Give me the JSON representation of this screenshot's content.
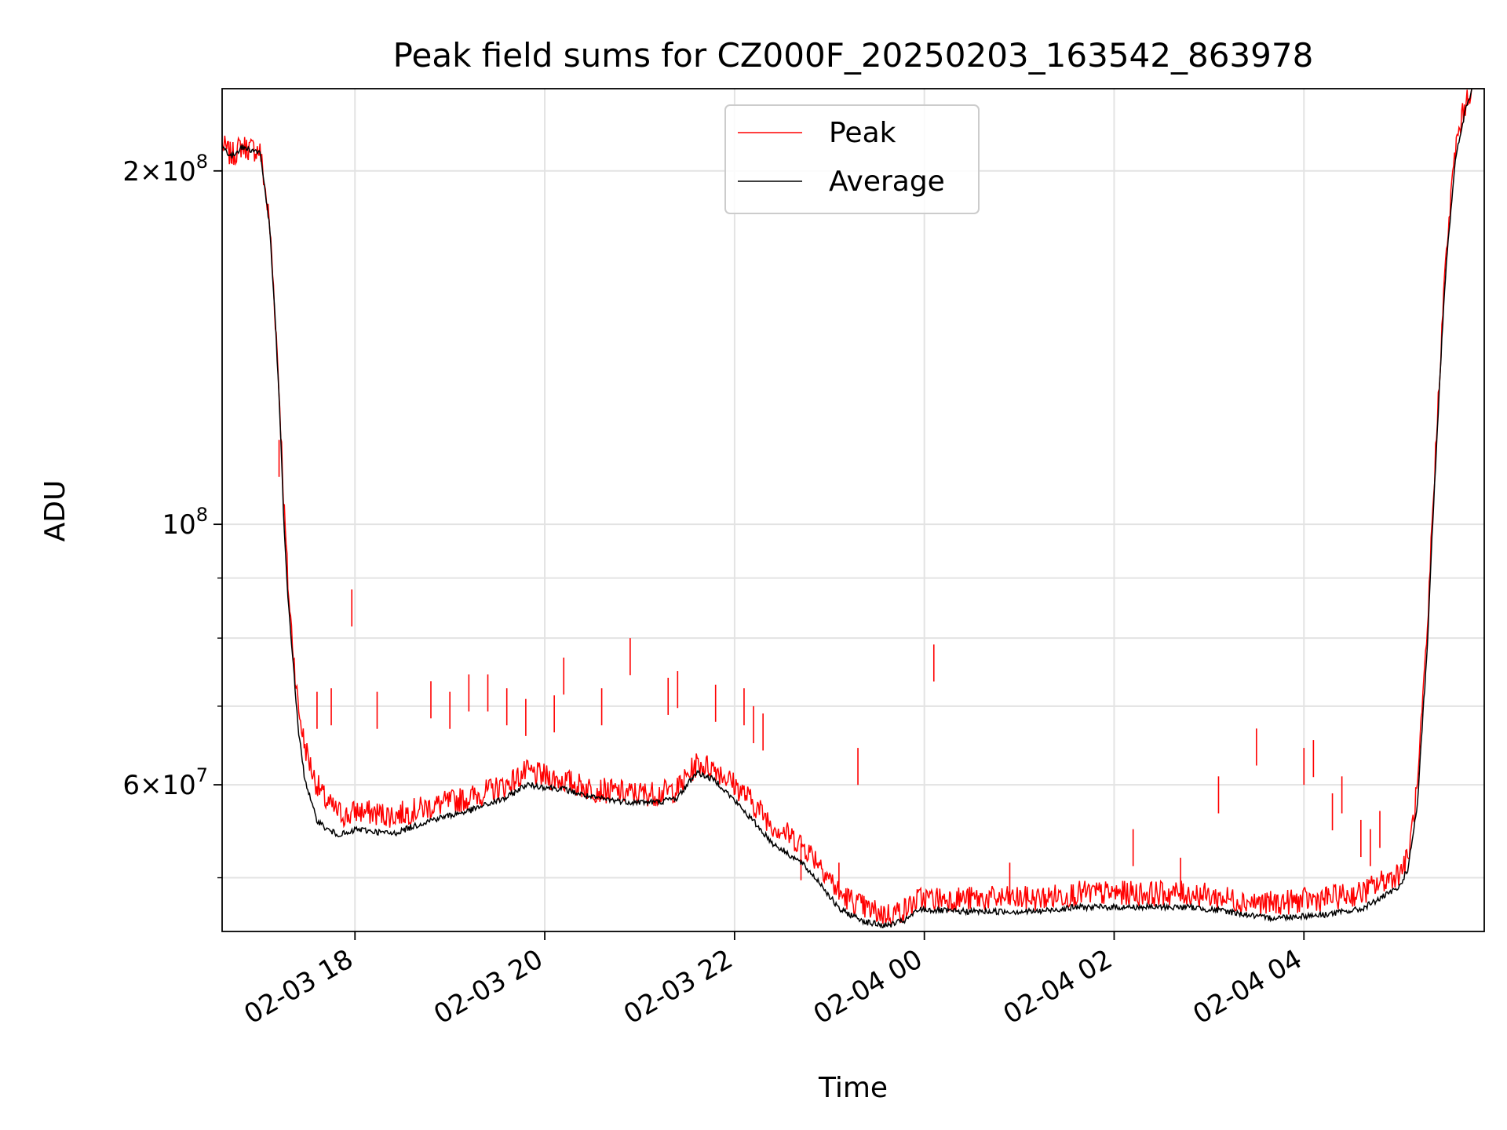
{
  "chart_data": {
    "type": "line",
    "title": "Peak field sums for CZ000F_20250203_163542_863978",
    "xlabel": "Time",
    "ylabel": "ADU",
    "y_scale": "log",
    "ylim": [
      45000000,
      235000000
    ],
    "xlim": [
      "2025-02-03 16:36",
      "2025-02-04 05:54"
    ],
    "grid": true,
    "legend_position": "upper center",
    "x_ticks": [
      {
        "t": "2025-02-03 18:00",
        "label": "02-03 18"
      },
      {
        "t": "2025-02-03 20:00",
        "label": "02-03 20"
      },
      {
        "t": "2025-02-03 22:00",
        "label": "02-03 22"
      },
      {
        "t": "2025-02-04 00:00",
        "label": "02-04 00"
      },
      {
        "t": "2025-02-04 02:00",
        "label": "02-04 02"
      },
      {
        "t": "2025-02-04 04:00",
        "label": "02-04 04"
      }
    ],
    "y_ticks": [
      {
        "v": 60000000,
        "base": "6",
        "exp": "7"
      },
      {
        "v": 100000000,
        "base": "",
        "exp": "8"
      },
      {
        "v": 200000000,
        "base": "2",
        "exp": "8"
      }
    ],
    "y_minor_ticks": [
      50000000,
      70000000,
      80000000,
      90000000
    ],
    "series": [
      {
        "name": "Peak",
        "color": "#ff0000",
        "x": [
          "2025-02-03 16:36",
          "2025-02-03 16:42",
          "2025-02-03 16:48",
          "2025-02-03 17:00",
          "2025-02-03 17:06",
          "2025-02-03 17:12",
          "2025-02-03 17:15",
          "2025-02-03 17:18",
          "2025-02-03 17:21",
          "2025-02-03 17:24",
          "2025-02-03 17:28",
          "2025-02-03 17:33",
          "2025-02-03 17:36",
          "2025-02-03 17:42",
          "2025-02-03 17:48",
          "2025-02-03 17:54",
          "2025-02-03 17:57",
          "2025-02-03 18:00",
          "2025-02-03 18:24",
          "2025-02-03 18:48",
          "2025-02-03 19:12",
          "2025-02-03 19:36",
          "2025-02-03 19:48",
          "2025-02-03 20:12",
          "2025-02-03 20:30",
          "2025-02-03 20:54",
          "2025-02-03 21:12",
          "2025-02-03 21:24",
          "2025-02-03 21:36",
          "2025-02-03 21:48",
          "2025-02-03 22:06",
          "2025-02-03 22:24",
          "2025-02-03 22:42",
          "2025-02-03 22:54",
          "2025-02-03 23:06",
          "2025-02-03 23:24",
          "2025-02-03 23:36",
          "2025-02-03 23:48",
          "2025-02-03 23:57",
          "2025-02-04 00:18",
          "2025-02-04 00:48",
          "2025-02-04 01:12",
          "2025-02-04 01:36",
          "2025-02-04 02:12",
          "2025-02-04 02:48",
          "2025-02-04 03:12",
          "2025-02-04 03:36",
          "2025-02-04 04:12",
          "2025-02-04 04:36",
          "2025-02-04 04:48",
          "2025-02-04 05:00",
          "2025-02-04 05:06",
          "2025-02-04 05:12",
          "2025-02-04 05:18",
          "2025-02-04 05:24",
          "2025-02-04 05:30",
          "2025-02-04 05:36",
          "2025-02-04 05:42",
          "2025-02-04 05:48",
          "2025-02-04 05:54"
        ],
        "y": [
          210500000,
          206000000,
          210000000,
          208000000,
          180000000,
          130000000,
          104000000,
          87000000,
          78000000,
          70000000,
          65000000,
          61500000,
          60000000,
          58000000,
          57000000,
          56500000,
          56500000,
          57000000,
          56500000,
          57500000,
          58500000,
          60000000,
          61500000,
          60500000,
          59500000,
          59000000,
          59000000,
          59500000,
          62500000,
          62000000,
          59000000,
          55500000,
          53500000,
          51500000,
          48500000,
          47000000,
          46500000,
          47000000,
          48000000,
          48000000,
          48000000,
          48000000,
          48500000,
          48500000,
          48500000,
          48000000,
          47500000,
          48000000,
          48500000,
          49500000,
          50500000,
          52000000,
          60000000,
          80000000,
          120000000,
          170000000,
          210000000,
          228000000,
          240000000,
          250000000
        ],
        "spikes": [
          {
            "t": "2025-02-03 17:12",
            "v": 118000000
          },
          {
            "t": "2025-02-03 17:36",
            "v": 72000000
          },
          {
            "t": "2025-02-03 17:45",
            "v": 72500000
          },
          {
            "t": "2025-02-03 17:58",
            "v": 88000000
          },
          {
            "t": "2025-02-03 18:14",
            "v": 72000000
          },
          {
            "t": "2025-02-03 18:48",
            "v": 73500000
          },
          {
            "t": "2025-02-03 19:00",
            "v": 72000000
          },
          {
            "t": "2025-02-03 19:12",
            "v": 74500000
          },
          {
            "t": "2025-02-03 19:24",
            "v": 74500000
          },
          {
            "t": "2025-02-03 19:36",
            "v": 72500000
          },
          {
            "t": "2025-02-03 19:48",
            "v": 71000000
          },
          {
            "t": "2025-02-03 20:06",
            "v": 71500000
          },
          {
            "t": "2025-02-03 20:12",
            "v": 77000000
          },
          {
            "t": "2025-02-03 20:36",
            "v": 72500000
          },
          {
            "t": "2025-02-03 20:54",
            "v": 80000000
          },
          {
            "t": "2025-02-03 21:18",
            "v": 74000000
          },
          {
            "t": "2025-02-03 21:24",
            "v": 75000000
          },
          {
            "t": "2025-02-03 21:48",
            "v": 73000000
          },
          {
            "t": "2025-02-03 22:06",
            "v": 72500000
          },
          {
            "t": "2025-02-03 22:12",
            "v": 70000000
          },
          {
            "t": "2025-02-03 22:18",
            "v": 69000000
          },
          {
            "t": "2025-02-03 22:42",
            "v": 53500000
          },
          {
            "t": "2025-02-03 23:06",
            "v": 51500000
          },
          {
            "t": "2025-02-03 23:18",
            "v": 64500000
          },
          {
            "t": "2025-02-04 00:06",
            "v": 79000000
          },
          {
            "t": "2025-02-04 00:54",
            "v": 51500000
          },
          {
            "t": "2025-02-04 02:12",
            "v": 55000000
          },
          {
            "t": "2025-02-04 02:42",
            "v": 52000000
          },
          {
            "t": "2025-02-04 03:06",
            "v": 61000000
          },
          {
            "t": "2025-02-04 03:30",
            "v": 67000000
          },
          {
            "t": "2025-02-04 04:00",
            "v": 64500000
          },
          {
            "t": "2025-02-04 04:06",
            "v": 65500000
          },
          {
            "t": "2025-02-04 04:18",
            "v": 59000000
          },
          {
            "t": "2025-02-04 04:24",
            "v": 61000000
          },
          {
            "t": "2025-02-04 04:36",
            "v": 56000000
          },
          {
            "t": "2025-02-04 04:42",
            "v": 55000000
          },
          {
            "t": "2025-02-04 04:48",
            "v": 57000000
          }
        ]
      },
      {
        "name": "Average",
        "color": "#000000",
        "x": [
          "2025-02-03 16:36",
          "2025-02-03 16:42",
          "2025-02-03 16:48",
          "2025-02-03 17:00",
          "2025-02-03 17:06",
          "2025-02-03 17:12",
          "2025-02-03 17:15",
          "2025-02-03 17:18",
          "2025-02-03 17:21",
          "2025-02-03 17:24",
          "2025-02-03 17:28",
          "2025-02-03 17:33",
          "2025-02-03 17:36",
          "2025-02-03 17:42",
          "2025-02-03 17:48",
          "2025-02-03 17:54",
          "2025-02-03 17:57",
          "2025-02-03 18:00",
          "2025-02-03 18:24",
          "2025-02-03 18:48",
          "2025-02-03 19:12",
          "2025-02-03 19:36",
          "2025-02-03 19:48",
          "2025-02-03 20:12",
          "2025-02-03 20:30",
          "2025-02-03 20:54",
          "2025-02-03 21:12",
          "2025-02-03 21:24",
          "2025-02-03 21:36",
          "2025-02-03 21:48",
          "2025-02-03 22:06",
          "2025-02-03 22:24",
          "2025-02-03 22:42",
          "2025-02-03 22:54",
          "2025-02-03 23:06",
          "2025-02-03 23:24",
          "2025-02-03 23:36",
          "2025-02-03 23:48",
          "2025-02-03 23:57",
          "2025-02-04 00:18",
          "2025-02-04 00:48",
          "2025-02-04 01:12",
          "2025-02-04 01:36",
          "2025-02-04 02:12",
          "2025-02-04 02:48",
          "2025-02-04 03:12",
          "2025-02-04 03:36",
          "2025-02-04 04:12",
          "2025-02-04 04:36",
          "2025-02-04 04:48",
          "2025-02-04 05:00",
          "2025-02-04 05:06",
          "2025-02-04 05:12",
          "2025-02-04 05:18",
          "2025-02-04 05:24",
          "2025-02-04 05:30",
          "2025-02-04 05:36",
          "2025-02-04 05:42",
          "2025-02-04 05:48",
          "2025-02-04 05:54"
        ],
        "y": [
          210000000,
          205500000,
          209500000,
          207500000,
          179000000,
          128000000,
          100000000,
          85000000,
          76000000,
          67000000,
          61000000,
          57500000,
          56000000,
          55000000,
          54500000,
          54500000,
          54500000,
          55000000,
          54500000,
          56000000,
          57000000,
          58500000,
          60000000,
          59500000,
          58500000,
          58000000,
          58000000,
          58500000,
          61500000,
          60500000,
          57000000,
          53500000,
          51500000,
          49500000,
          47000000,
          45800000,
          45500000,
          46000000,
          47000000,
          46800000,
          46800000,
          46800000,
          47200000,
          47200000,
          47200000,
          46800000,
          46200000,
          46500000,
          47000000,
          48000000,
          49000000,
          51000000,
          58000000,
          78000000,
          117000000,
          167000000,
          205000000,
          225000000,
          238000000,
          250000000
        ]
      }
    ]
  }
}
